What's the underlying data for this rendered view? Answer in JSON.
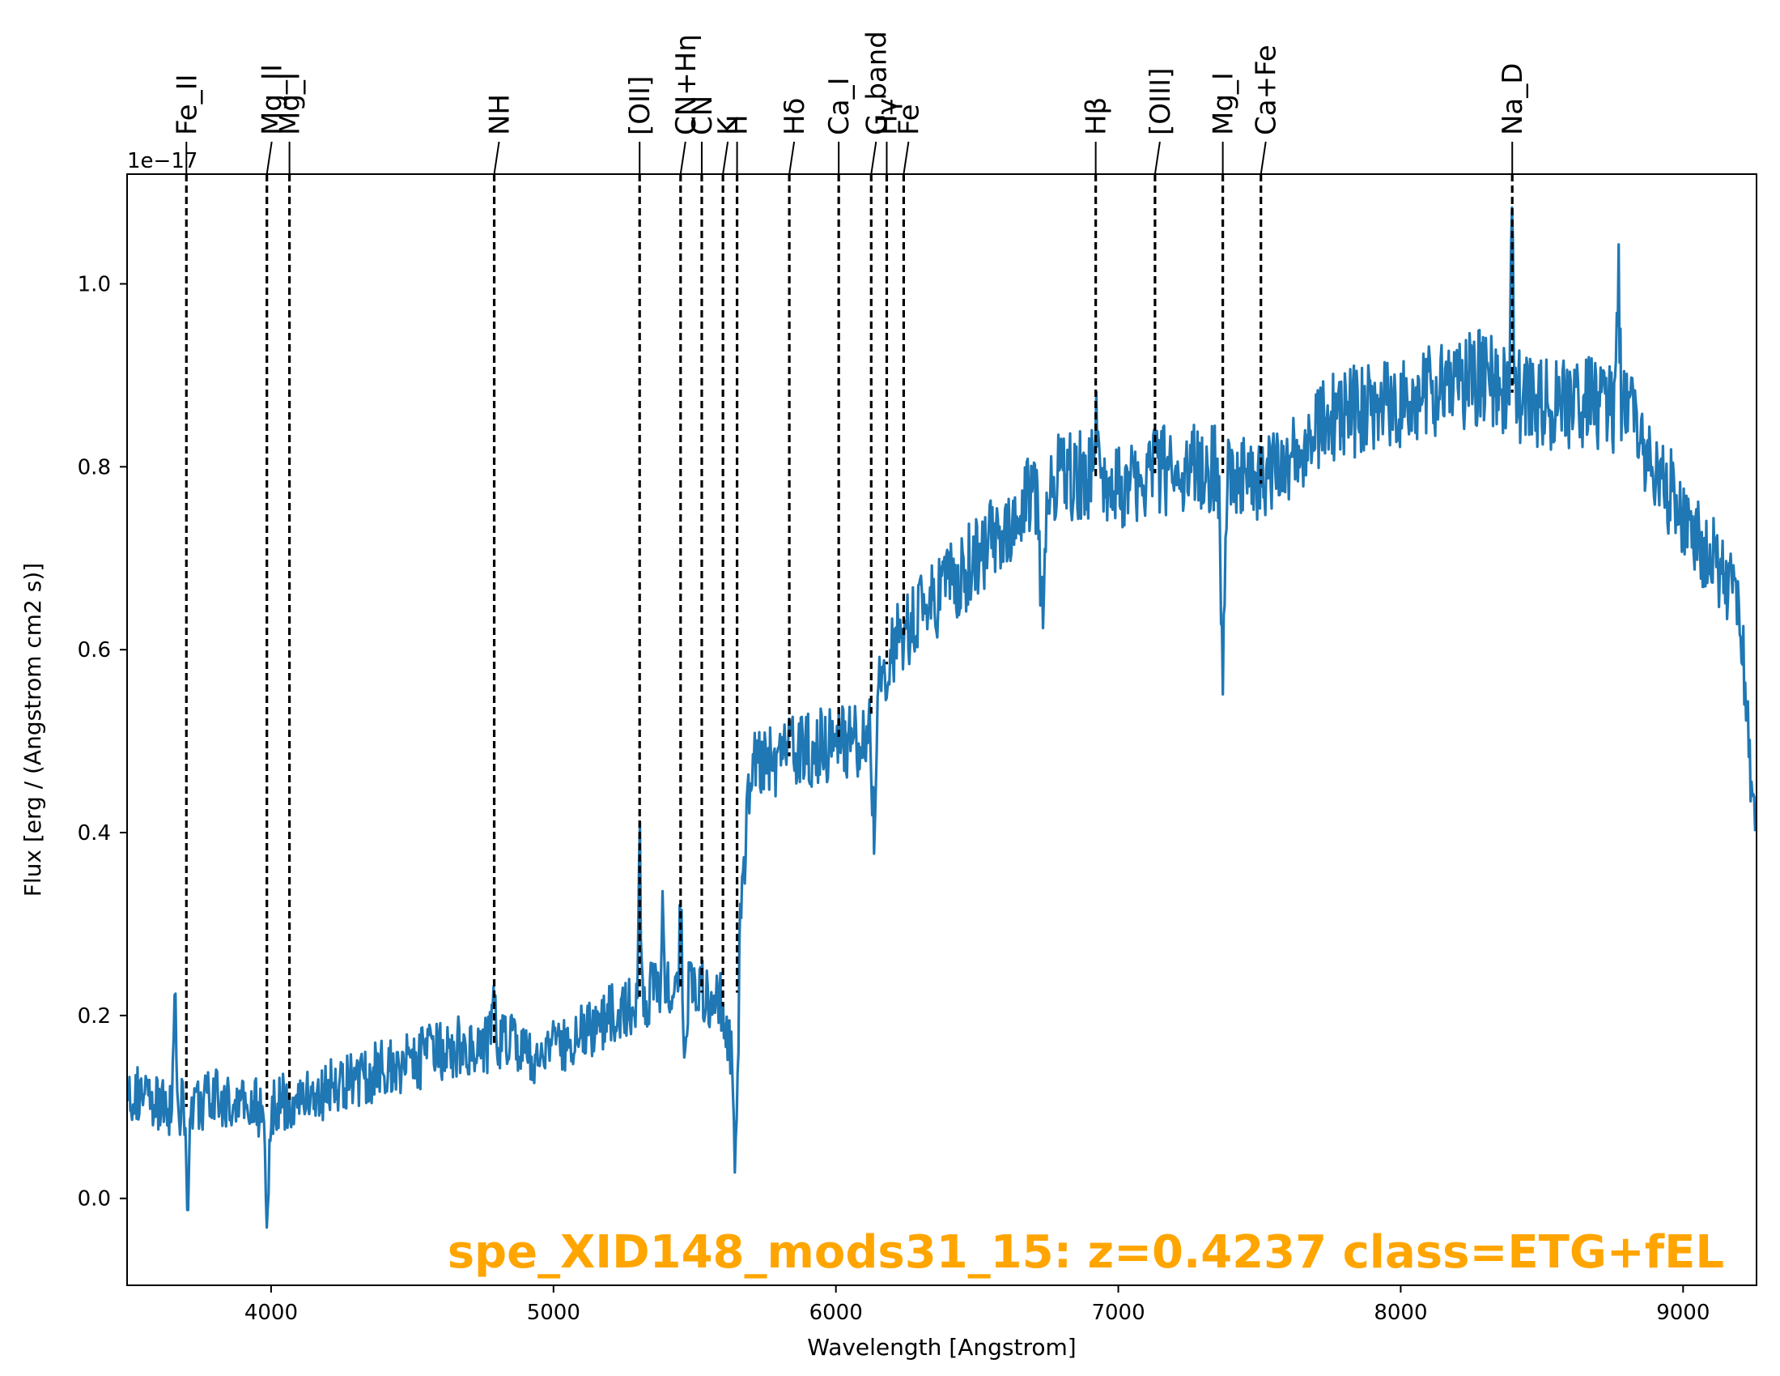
{
  "chart_data": {
    "type": "line",
    "title": "spe_XID148_mods31_15: z=0.4237 class=ETG+fEL",
    "title_color": "#FFA500",
    "xlabel": "Wavelength [Angstrom]",
    "ylabel": "Flux [erg / (Angstrom cm2 s)]",
    "y_offset_label": "1e−17",
    "xlim": [
      3490,
      9260
    ],
    "ylim": [
      -0.095,
      1.12
    ],
    "x_ticks": [
      4000,
      5000,
      6000,
      7000,
      8000,
      9000
    ],
    "x_tick_labels": [
      "4000",
      "5000",
      "6000",
      "7000",
      "8000",
      "9000"
    ],
    "y_ticks": [
      0.0,
      0.2,
      0.4,
      0.6,
      0.8,
      1.0
    ],
    "y_tick_labels": [
      "0.0",
      "0.2",
      "0.4",
      "0.6",
      "0.8",
      "1.0"
    ],
    "grid": false,
    "series_color": "#1f77b4",
    "continuum": {
      "x": [
        3495,
        3600,
        3700,
        3800,
        3900,
        4000,
        4100,
        4200,
        4300,
        4400,
        4500,
        4600,
        4700,
        4800,
        4900,
        5000,
        5100,
        5200,
        5300,
        5400,
        5500,
        5600,
        5640,
        5660,
        5700,
        5800,
        5900,
        6000,
        6100,
        6150,
        6200,
        6300,
        6400,
        6500,
        6600,
        6700,
        6800,
        6900,
        7000,
        7100,
        7200,
        7300,
        7400,
        7500,
        7600,
        7700,
        7800,
        7900,
        8000,
        8100,
        8200,
        8300,
        8400,
        8500,
        8600,
        8700,
        8800,
        8900,
        9000,
        9100,
        9200,
        9255
      ],
      "y": [
        0.12,
        0.1,
        0.1,
        0.11,
        0.1,
        0.1,
        0.11,
        0.12,
        0.13,
        0.14,
        0.15,
        0.16,
        0.17,
        0.17,
        0.16,
        0.16,
        0.18,
        0.2,
        0.22,
        0.23,
        0.23,
        0.21,
        0.15,
        0.3,
        0.47,
        0.48,
        0.49,
        0.5,
        0.5,
        0.56,
        0.6,
        0.64,
        0.67,
        0.7,
        0.74,
        0.77,
        0.79,
        0.79,
        0.78,
        0.79,
        0.8,
        0.8,
        0.79,
        0.78,
        0.81,
        0.84,
        0.86,
        0.86,
        0.87,
        0.88,
        0.89,
        0.9,
        0.88,
        0.87,
        0.87,
        0.87,
        0.86,
        0.8,
        0.75,
        0.7,
        0.66,
        0.4
      ]
    },
    "features": {
      "x": [
        3660,
        3705,
        3985,
        4790,
        4860,
        5305,
        5385,
        5450,
        5465,
        5645,
        6135,
        6730,
        6920,
        7370,
        8395,
        8770
      ],
      "y": [
        0.24,
        -0.04,
        -0.02,
        0.21,
        0.2,
        0.42,
        0.31,
        0.34,
        0.15,
        0.05,
        0.42,
        0.65,
        0.84,
        0.55,
        1.06,
        1.0
      ],
      "widths": [
        6,
        6,
        8,
        8,
        8,
        5,
        6,
        6,
        8,
        10,
        12,
        10,
        10,
        8,
        6,
        8
      ]
    },
    "noise_amplitude": 0.05,
    "lines": [
      {
        "name": "Fe_II",
        "x": 3700
      },
      {
        "name": "Mg_II",
        "x": 3985
      },
      {
        "name": "Mg_I",
        "x": 4065
      },
      {
        "name": "NH",
        "x": 4790
      },
      {
        "name": "[OII]",
        "x": 5305
      },
      {
        "name": "CN+Hη",
        "x": 5450
      },
      {
        "name": "CN",
        "x": 5525
      },
      {
        "name": "K",
        "x": 5600
      },
      {
        "name": "H",
        "x": 5650
      },
      {
        "name": "Hδ",
        "x": 5835
      },
      {
        "name": "Ca_I",
        "x": 6010
      },
      {
        "name": "G_band",
        "x": 6125
      },
      {
        "name": "Hγ",
        "x": 6180
      },
      {
        "name": "Fe",
        "x": 6240
      },
      {
        "name": "Hβ",
        "x": 6920
      },
      {
        "name": "[OIII]",
        "x": 7130
      },
      {
        "name": "Mg_I",
        "x": 7370
      },
      {
        "name": "Ca+Fe",
        "x": 7505
      },
      {
        "name": "Na_D",
        "x": 8395
      }
    ]
  }
}
